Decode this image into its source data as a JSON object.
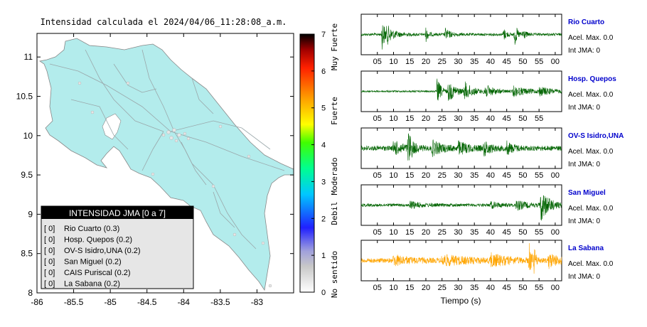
{
  "map": {
    "title": "Intensidad calculada el 2024/04/06_11:28:08_a.m.",
    "x_ticks": [
      "-86",
      "-85.5",
      "-85",
      "-84.5",
      "-84",
      "-83.5",
      "-83"
    ],
    "y_ticks": [
      "11",
      "10.5",
      "10",
      "9.5",
      "9",
      "8.5",
      "8"
    ],
    "xlim": [
      -86,
      -82.5
    ],
    "ylim": [
      8,
      11.3
    ],
    "land_color": "#b3ecec",
    "legend": {
      "title": "INTENSIDAD JMA [0 a 7]",
      "entries": [
        {
          "value": "[ 0]",
          "label": "Rio Cuarto (0.3)"
        },
        {
          "value": "[ 0]",
          "label": "Hosp. Quepos (0.2)"
        },
        {
          "value": "[ 0]",
          "label": "OV-S Isidro,UNA (0.2)"
        },
        {
          "value": "[ 0]",
          "label": "San Miguel (0.2)"
        },
        {
          "value": "[ 0]",
          "label": "CAIS Puriscal (0.2)"
        },
        {
          "value": "[ 0]",
          "label": "La Sabana (0.2)"
        }
      ]
    }
  },
  "colorbar": {
    "ticks": [
      "7",
      "6",
      "5",
      "4",
      "3",
      "2",
      "1",
      "0"
    ],
    "labels": [
      "Muy Fuerte",
      "Fuerte",
      "Moderado",
      "Debil",
      "No sentido"
    ]
  },
  "chart_data": {
    "type": "line",
    "x_ticks": [
      "05",
      "10",
      "15",
      "20",
      "25",
      "30",
      "35",
      "40",
      "45",
      "50",
      "55",
      "00"
    ],
    "xlabel": "Tiempo (s)",
    "series": [
      {
        "name": "Rio Cuarto",
        "acel": "Acel. Max. 0.0",
        "int": "Int JMA: 0",
        "color": "#006400",
        "bursts": [
          [
            6.5,
            1.0,
            0.8
          ],
          [
            8,
            2.5,
            0.35
          ],
          [
            20,
            0.8,
            0.35
          ],
          [
            26,
            1.5,
            0.3
          ],
          [
            44,
            1.0,
            0.3
          ],
          [
            47.5,
            0.8,
            0.6
          ],
          [
            50,
            0.8,
            0.3
          ]
        ],
        "noise": 0.07
      },
      {
        "name": "Hosp. Quepos",
        "acel": "Acel. Max. 0.0",
        "int": "Int JMA: 0",
        "color": "#006400",
        "bursts": [
          [
            23.5,
            1.2,
            0.7
          ],
          [
            27,
            2.5,
            0.5
          ],
          [
            32,
            2.5,
            0.45
          ],
          [
            38,
            3,
            0.35
          ],
          [
            47,
            5,
            0.25
          ],
          [
            55,
            4,
            0.2
          ]
        ],
        "noise": 0.05
      },
      {
        "name": "OV-S Isidro,UNA",
        "acel": "Acel. Max. 0.0",
        "int": "Int JMA: 0",
        "color": "#006400",
        "bursts": [
          [
            14.5,
            1.2,
            0.9
          ],
          [
            10,
            3,
            0.35
          ],
          [
            22,
            3,
            0.35
          ],
          [
            30,
            3,
            0.3
          ],
          [
            38,
            2,
            0.35
          ],
          [
            45,
            2,
            0.3
          ]
        ],
        "noise": 0.13
      },
      {
        "name": "San Miguel",
        "acel": "Acel. Max. 0.0",
        "int": "Int JMA: 0",
        "color": "#006400",
        "bursts": [
          [
            55.5,
            2.5,
            0.85
          ],
          [
            15,
            3,
            0.2
          ],
          [
            40,
            3,
            0.15
          ],
          [
            48,
            3,
            0.25
          ]
        ],
        "noise": 0.08
      },
      {
        "name": "La Sabana",
        "acel": "Acel. Max. 0.0",
        "int": "Int JMA: 0",
        "color": "#ffa500",
        "bursts": [
          [
            52,
            0.6,
            0.95
          ],
          [
            53.5,
            0.6,
            0.6
          ],
          [
            10,
            5,
            0.25
          ],
          [
            25,
            8,
            0.25
          ],
          [
            40,
            5,
            0.3
          ],
          [
            58,
            3,
            0.35
          ]
        ],
        "noise": 0.12
      }
    ]
  }
}
